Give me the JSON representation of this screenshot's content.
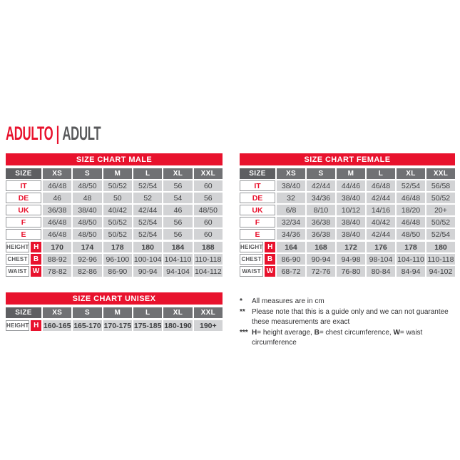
{
  "title": {
    "primary": "ADULTO",
    "separator": "|",
    "secondary": "ADULT"
  },
  "colors": {
    "red": "#e8122d",
    "header_gray": "#707174",
    "size_header_gray": "#5e5f62",
    "cell_bg": "#d2d3d5",
    "cell_text": "#3f4042",
    "label_border": "#97999c",
    "title_gray": "#58595b",
    "measure_label_text": "#58595b",
    "footnote_text": "#303032"
  },
  "tables": {
    "male": {
      "title": "SIZE CHART MALE",
      "size_header": "SIZE",
      "columns": [
        "XS",
        "S",
        "M",
        "L",
        "XL",
        "XXL"
      ],
      "rows": [
        {
          "label": "IT",
          "values": [
            "46/48",
            "48/50",
            "50/52",
            "52/54",
            "56",
            "60"
          ]
        },
        {
          "label": "DE",
          "values": [
            "46",
            "48",
            "50",
            "52",
            "54",
            "56"
          ]
        },
        {
          "label": "UK",
          "values": [
            "36/38",
            "38/40",
            "40/42",
            "42/44",
            "46",
            "48/50"
          ]
        },
        {
          "label": "F",
          "values": [
            "46/48",
            "48/50",
            "50/52",
            "52/54",
            "56",
            "60"
          ]
        },
        {
          "label": "E",
          "values": [
            "46/48",
            "48/50",
            "50/52",
            "52/54",
            "56",
            "60"
          ]
        }
      ],
      "measure_rows": [
        {
          "label": "HEIGHT",
          "letter": "H",
          "values": [
            "170",
            "174",
            "178",
            "180",
            "184",
            "188"
          ]
        },
        {
          "label": "CHEST",
          "letter": "B",
          "values": [
            "88-92",
            "92-96",
            "96-100",
            "100-104",
            "104-110",
            "110-118"
          ]
        },
        {
          "label": "WAIST",
          "letter": "W",
          "values": [
            "78-82",
            "82-86",
            "86-90",
            "90-94",
            "94-104",
            "104-112"
          ]
        }
      ]
    },
    "female": {
      "title": "SIZE CHART FEMALE",
      "size_header": "SIZE",
      "columns": [
        "XS",
        "S",
        "M",
        "L",
        "XL",
        "XXL"
      ],
      "rows": [
        {
          "label": "IT",
          "values": [
            "38/40",
            "42/44",
            "44/46",
            "46/48",
            "52/54",
            "56/58"
          ]
        },
        {
          "label": "DE",
          "values": [
            "32",
            "34/36",
            "38/40",
            "42/44",
            "46/48",
            "50/52"
          ]
        },
        {
          "label": "UK",
          "values": [
            "6/8",
            "8/10",
            "10/12",
            "14/16",
            "18/20",
            "20+"
          ]
        },
        {
          "label": "F",
          "values": [
            "32/34",
            "36/38",
            "38/40",
            "40/42",
            "46/48",
            "50/52"
          ]
        },
        {
          "label": "E",
          "values": [
            "34/36",
            "36/38",
            "38/40",
            "42/44",
            "48/50",
            "52/54"
          ]
        }
      ],
      "measure_rows": [
        {
          "label": "HEIGHT",
          "letter": "H",
          "values": [
            "164",
            "168",
            "172",
            "176",
            "178",
            "180"
          ]
        },
        {
          "label": "CHEST",
          "letter": "B",
          "values": [
            "86-90",
            "90-94",
            "94-98",
            "98-104",
            "104-110",
            "110-118"
          ]
        },
        {
          "label": "WAIST",
          "letter": "W",
          "values": [
            "68-72",
            "72-76",
            "76-80",
            "80-84",
            "84-94",
            "94-102"
          ]
        }
      ]
    },
    "unisex": {
      "title": "SIZE CHART UNISEX",
      "size_header": "SIZE",
      "columns": [
        "XS",
        "S",
        "M",
        "L",
        "XL",
        "XXL"
      ],
      "measure_rows": [
        {
          "label": "HEIGHT",
          "letter": "H",
          "values": [
            "160-165",
            "165-170",
            "170-175",
            "175-185",
            "180-190",
            "190+"
          ]
        }
      ]
    }
  },
  "footnotes": [
    {
      "marker": "*",
      "text": "All measures are in cm"
    },
    {
      "marker": "**",
      "text": "Please note that this is a guide only and we can not guarantee these measurements are exact"
    },
    {
      "marker": "***",
      "segments": {
        "b1": "H",
        "t1": "= height average, ",
        "b2": "B",
        "t2": "= chest circumference, ",
        "b3": "W",
        "t3": "= waist circumference"
      }
    }
  ]
}
